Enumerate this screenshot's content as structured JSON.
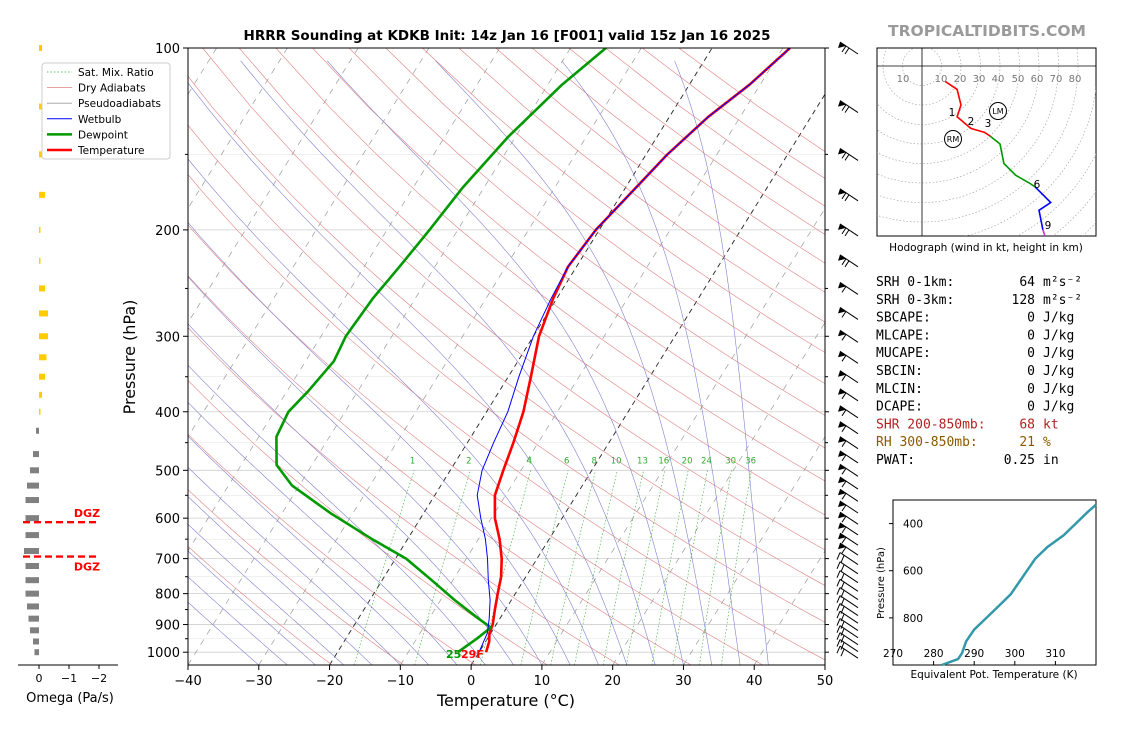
{
  "header": {
    "title": "HRRR Sounding at KDKB Init: 14z Jan 16 [F001] valid 15z Jan 16 2025",
    "brand": "TROPICALTIDBITS.COM"
  },
  "skewt": {
    "xlabel": "Temperature (°C)",
    "ylabel": "Pressure (hPa)",
    "x_ticks": [
      -40,
      -30,
      -20,
      -10,
      0,
      10,
      20,
      30,
      40,
      50
    ],
    "y_ticks": [
      100,
      200,
      300,
      400,
      500,
      600,
      700,
      800,
      900,
      1000
    ],
    "mixing_ratio_labels": [
      "1",
      "2",
      "4",
      "6",
      "8",
      "10",
      "13",
      "16",
      "20",
      "24",
      "30",
      "36"
    ],
    "legend": [
      "Sat. Mix. Ratio",
      "Dry Adiabats",
      "Pseudoadiabats",
      "Wetbulb",
      "Dewpoint",
      "Temperature"
    ],
    "surface_label": "2529F",
    "surface_dewpoint_label": "25",
    "surface_temp_label": "29F"
  },
  "omega": {
    "xlabel": "Omega (Pa/s)",
    "x_ticks": [
      "0",
      "−1",
      "−2"
    ],
    "dgz_label": "DGZ"
  },
  "hodograph": {
    "caption": "Hodograph (wind in kt, height in km)",
    "ring_labels": [
      "10",
      "10",
      "20",
      "30",
      "40",
      "50",
      "60",
      "70",
      "80"
    ],
    "height_labels": [
      "1",
      "2",
      "3",
      "6",
      "9"
    ],
    "rm_label": "RM",
    "lm_label": "LM"
  },
  "indices": [
    {
      "label": "SRH 0-1km:",
      "value": "64",
      "unit": "m²s⁻²",
      "color": "#000000"
    },
    {
      "label": "SRH 0-3km:",
      "value": "128",
      "unit": "m²s⁻²",
      "color": "#000000"
    },
    {
      "label": "SBCAPE:",
      "value": "0",
      "unit": "J/kg",
      "color": "#000000"
    },
    {
      "label": "MLCAPE:",
      "value": "0",
      "unit": "J/kg",
      "color": "#000000"
    },
    {
      "label": "MUCAPE:",
      "value": "0",
      "unit": "J/kg",
      "color": "#000000"
    },
    {
      "label": "SBCIN:",
      "value": "0",
      "unit": "J/kg",
      "color": "#000000"
    },
    {
      "label": "MLCIN:",
      "value": "0",
      "unit": "J/kg",
      "color": "#000000"
    },
    {
      "label": "DCAPE:",
      "value": "0",
      "unit": "J/kg",
      "color": "#000000"
    },
    {
      "label": "SHR 200-850mb:",
      "value": "68",
      "unit": "kt",
      "color": "#b22222"
    },
    {
      "label": "RH 300-850mb:",
      "value": "21",
      "unit": "%",
      "color": "#8b5a00"
    },
    {
      "label": "PWAT:",
      "value": "0.25",
      "unit": "in",
      "color": "#000000"
    }
  ],
  "theta_e": {
    "xlabel": "Equivalent Pot. Temperature (K)",
    "ylabel": "Pressure (hPa)",
    "x_ticks": [
      "270",
      "280",
      "290",
      "300",
      "310"
    ],
    "y_ticks": [
      "400",
      "600",
      "800"
    ]
  },
  "colors": {
    "temperature": "#ff0000",
    "dewpoint": "#009900",
    "wetbulb": "#0000ff",
    "dry_adiabat": "#e08080",
    "moist_adiabat": "#8080d0",
    "mixing_ratio": "#33aa33",
    "omega_positive": "#ffcc00",
    "omega_negative": "#808080",
    "theta_e": "#3399aa",
    "hodo_storm_motion": "#000000"
  },
  "chart_data": [
    {
      "type": "line",
      "title": "HRRR Sounding at KDKB Init: 14z Jan 16 [F001] valid 15z Jan 16 2025",
      "xlabel": "Temperature (°C)",
      "ylabel": "Pressure (hPa)",
      "xlim": [
        -40,
        50
      ],
      "ylim": [
        1050,
        100
      ],
      "y_scale": "log",
      "skew": true,
      "series": [
        {
          "name": "Temperature",
          "points": [
            [
              1,
              1000
            ],
            [
              0.5,
              960
            ],
            [
              -0.2,
              930
            ],
            [
              -0.5,
              900
            ],
            [
              -1.5,
              850
            ],
            [
              -2.5,
              800
            ],
            [
              -3.5,
              750
            ],
            [
              -5,
              700
            ],
            [
              -7,
              650
            ],
            [
              -9.5,
              600
            ],
            [
              -11.5,
              550
            ],
            [
              -12.5,
              500
            ],
            [
              -13.5,
              450
            ],
            [
              -14.8,
              400
            ],
            [
              -16.8,
              350
            ],
            [
              -19.2,
              300
            ],
            [
              -20.5,
              260
            ],
            [
              -21.2,
              230
            ],
            [
              -20.5,
              200
            ],
            [
              -18.5,
              170
            ],
            [
              -17,
              150
            ],
            [
              -14.5,
              130
            ],
            [
              -11.5,
              115
            ],
            [
              -9,
              100
            ]
          ]
        },
        {
          "name": "Dewpoint",
          "points": [
            [
              -3,
              1000
            ],
            [
              -1.5,
              950
            ],
            [
              -0.5,
              910
            ],
            [
              -3,
              880
            ],
            [
              -8,
              820
            ],
            [
              -13,
              760
            ],
            [
              -18.5,
              700
            ],
            [
              -25,
              650
            ],
            [
              -33,
              590
            ],
            [
              -41,
              530
            ],
            [
              -45,
              490
            ],
            [
              -47.5,
              440
            ],
            [
              -48,
              400
            ],
            [
              -47,
              370
            ],
            [
              -46,
              330
            ],
            [
              -46.5,
              300
            ],
            [
              -46,
              260
            ],
            [
              -45,
              230
            ],
            [
              -44,
              200
            ],
            [
              -43,
              170
            ],
            [
              -41,
              140
            ],
            [
              -38,
              115
            ],
            [
              -35,
              100
            ]
          ]
        },
        {
          "name": "Wetbulb",
          "points": [
            [
              0,
              1000
            ],
            [
              -0.5,
              930
            ],
            [
              -1.5,
              880
            ],
            [
              -3,
              820
            ],
            [
              -5,
              760
            ],
            [
              -7,
              700
            ],
            [
              -9,
              650
            ],
            [
              -11.5,
              600
            ],
            [
              -14,
              550
            ],
            [
              -15.5,
              500
            ],
            [
              -16.3,
              450
            ],
            [
              -17,
              400
            ],
            [
              -18.5,
              350
            ],
            [
              -20,
              300
            ],
            [
              -20.8,
              260
            ],
            [
              -21.2,
              230
            ],
            [
              -20.5,
              200
            ],
            [
              -18.5,
              170
            ],
            [
              -17,
              150
            ],
            [
              -14.5,
              130
            ],
            [
              -11.5,
              115
            ],
            [
              -9,
              100
            ]
          ]
        }
      ]
    },
    {
      "type": "bar",
      "title": "",
      "xlabel": "Omega (Pa/s)",
      "note": "negative values plotted to the right",
      "series": [
        {
          "name": "omega",
          "points": [
            [
              -0.1,
              100
            ],
            [
              -0.2,
              125
            ],
            [
              -0.15,
              150
            ],
            [
              -0.2,
              175
            ],
            [
              -0.05,
              200
            ],
            [
              -0.05,
              225
            ],
            [
              -0.2,
              250
            ],
            [
              -0.3,
              275
            ],
            [
              -0.3,
              300
            ],
            [
              -0.25,
              325
            ],
            [
              -0.2,
              350
            ],
            [
              -0.1,
              375
            ],
            [
              -0.05,
              400
            ],
            [
              0.1,
              430
            ],
            [
              0.2,
              470
            ],
            [
              0.3,
              500
            ],
            [
              0.4,
              530
            ],
            [
              0.45,
              560
            ],
            [
              0.45,
              600
            ],
            [
              0.45,
              640
            ],
            [
              0.5,
              680
            ],
            [
              0.45,
              720
            ],
            [
              0.45,
              760
            ],
            [
              0.45,
              800
            ],
            [
              0.4,
              840
            ],
            [
              0.35,
              880
            ],
            [
              0.3,
              920
            ],
            [
              0.2,
              960
            ],
            [
              0.15,
              1000
            ]
          ]
        }
      ]
    },
    {
      "type": "line",
      "title": "Hodograph (wind in kt, height in km)",
      "xlim": [
        -10,
        80
      ],
      "ylim": [
        -100,
        10
      ],
      "series": [
        {
          "name": "0-3 km",
          "points": [
            [
              12,
              -8
            ],
            [
              18,
              -12
            ],
            [
              20,
              -20
            ],
            [
              18,
              -26
            ],
            [
              25,
              -32
            ],
            [
              32,
              -34
            ],
            [
              35,
              -36
            ]
          ]
        },
        {
          "name": "3-6 km",
          "points": [
            [
              35,
              -36
            ],
            [
              40,
              -40
            ],
            [
              42,
              -50
            ],
            [
              48,
              -56
            ],
            [
              55,
              -60
            ],
            [
              58,
              -62
            ]
          ]
        },
        {
          "name": "6-9 km",
          "points": [
            [
              58,
              -62
            ],
            [
              62,
              -66
            ],
            [
              66,
              -70
            ],
            [
              60,
              -74
            ],
            [
              62,
              -84
            ]
          ]
        },
        {
          "name": "9+ km",
          "points": [
            [
              62,
              -84
            ],
            [
              64,
              -90
            ]
          ]
        }
      ]
    },
    {
      "type": "line",
      "title": "",
      "xlabel": "Equivalent Pot. Temperature (K)",
      "ylabel": "Pressure (hPa)",
      "xlim": [
        270,
        320
      ],
      "ylim": [
        1000,
        300
      ],
      "series": [
        {
          "name": "theta_e",
          "points": [
            [
              282,
              1000
            ],
            [
              286,
              975
            ],
            [
              287,
              950
            ],
            [
              288,
              900
            ],
            [
              290,
              850
            ],
            [
              293,
              800
            ],
            [
              296,
              750
            ],
            [
              299,
              700
            ],
            [
              301,
              650
            ],
            [
              303,
              600
            ],
            [
              305,
              550
            ],
            [
              308,
              500
            ],
            [
              312,
              450
            ],
            [
              315,
              400
            ],
            [
              318,
              350
            ],
            [
              320,
              320
            ]
          ]
        }
      ]
    }
  ]
}
